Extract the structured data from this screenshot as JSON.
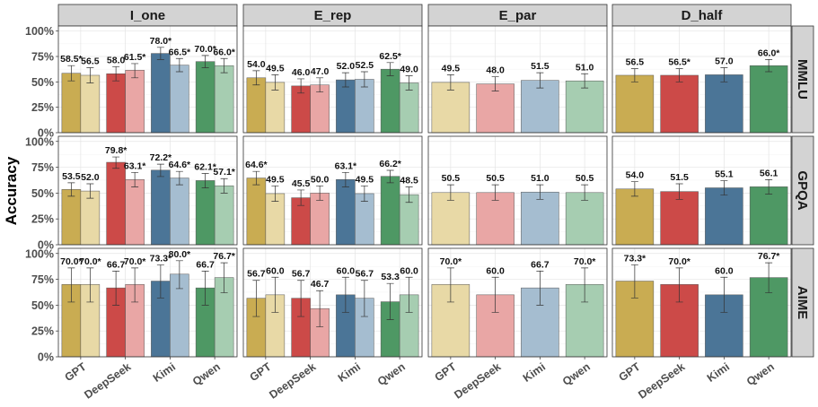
{
  "chart_data": {
    "type": "bar",
    "ylabel": "Accuracy",
    "ylim": [
      0,
      105
    ],
    "yticks": [
      0,
      25,
      50,
      75,
      100
    ],
    "yticklabels": [
      "0%",
      "25%",
      "50%",
      "75%",
      "100%"
    ],
    "columns": [
      "I_one",
      "E_rep",
      "E_par",
      "D_half"
    ],
    "rows": [
      "MMLU",
      "GPQA",
      "AIME"
    ],
    "categories": [
      "GPT",
      "DeepSeek",
      "Kimi",
      "Qwen"
    ],
    "colors": {
      "GPT": [
        "#c9ac52",
        "#e8d9a6"
      ],
      "DeepSeek": [
        "#cc4a48",
        "#e9a6a5"
      ],
      "Kimi": [
        "#4b7597",
        "#a5bdd0"
      ],
      "Qwen": [
        "#4e9864",
        "#a6cdb1"
      ]
    },
    "panels": [
      {
        "row": "MMLU",
        "col": "I_one",
        "bars": [
          {
            "model": "GPT",
            "shade": 0,
            "value": 58.5,
            "label": "58.5*",
            "err": [
              51,
              66
            ]
          },
          {
            "model": "GPT",
            "shade": 1,
            "value": 56.5,
            "label": "56.5",
            "err": [
              49,
              64
            ]
          },
          {
            "model": "DeepSeek",
            "shade": 0,
            "value": 58.0,
            "label": "58.0",
            "err": [
              51,
              65
            ]
          },
          {
            "model": "DeepSeek",
            "shade": 1,
            "value": 61.5,
            "label": "61.5*",
            "err": [
              54,
              68
            ]
          },
          {
            "model": "Kimi",
            "shade": 0,
            "value": 78.0,
            "label": "78.0*",
            "err": [
              72,
              84
            ]
          },
          {
            "model": "Kimi",
            "shade": 1,
            "value": 66.5,
            "label": "66.5*",
            "err": [
              60,
              73
            ]
          },
          {
            "model": "Qwen",
            "shade": 0,
            "value": 70.0,
            "label": "70.0*",
            "err": [
              64,
              76
            ]
          },
          {
            "model": "Qwen",
            "shade": 1,
            "value": 66.0,
            "label": "66.0*",
            "err": [
              59,
              73
            ]
          }
        ]
      },
      {
        "row": "MMLU",
        "col": "E_rep",
        "bars": [
          {
            "model": "GPT",
            "shade": 0,
            "value": 54.0,
            "label": "54.0",
            "err": [
              47,
              61
            ]
          },
          {
            "model": "GPT",
            "shade": 1,
            "value": 49.5,
            "label": "49.5",
            "err": [
              42,
              57
            ]
          },
          {
            "model": "DeepSeek",
            "shade": 0,
            "value": 46.0,
            "label": "46.0",
            "err": [
              39,
              53
            ]
          },
          {
            "model": "DeepSeek",
            "shade": 1,
            "value": 47.0,
            "label": "47.0",
            "err": [
              40,
              54
            ]
          },
          {
            "model": "Kimi",
            "shade": 0,
            "value": 52.0,
            "label": "52.0",
            "err": [
              45,
              59
            ]
          },
          {
            "model": "Kimi",
            "shade": 1,
            "value": 52.5,
            "label": "52.5",
            "err": [
              45,
              60
            ]
          },
          {
            "model": "Qwen",
            "shade": 0,
            "value": 62.5,
            "label": "62.5*",
            "err": [
              56,
              69
            ]
          },
          {
            "model": "Qwen",
            "shade": 1,
            "value": 49.0,
            "label": "49.0",
            "err": [
              42,
              56
            ]
          }
        ]
      },
      {
        "row": "MMLU",
        "col": "E_par",
        "bars": [
          {
            "model": "GPT",
            "shade": 1,
            "value": 49.5,
            "label": "49.5",
            "err": [
              42,
              57
            ]
          },
          {
            "model": "DeepSeek",
            "shade": 1,
            "value": 48.0,
            "label": "48.0",
            "err": [
              41,
              55
            ]
          },
          {
            "model": "Kimi",
            "shade": 1,
            "value": 51.5,
            "label": "51.5",
            "err": [
              44,
              59
            ]
          },
          {
            "model": "Qwen",
            "shade": 1,
            "value": 51.0,
            "label": "51.0",
            "err": [
              44,
              58
            ]
          }
        ]
      },
      {
        "row": "MMLU",
        "col": "D_half",
        "bars": [
          {
            "model": "GPT",
            "shade": 0,
            "value": 56.5,
            "label": "56.5",
            "err": [
              50,
              63
            ]
          },
          {
            "model": "DeepSeek",
            "shade": 0,
            "value": 56.5,
            "label": "56.5*",
            "err": [
              50,
              63
            ]
          },
          {
            "model": "Kimi",
            "shade": 0,
            "value": 57.0,
            "label": "57.0",
            "err": [
              50,
              64
            ]
          },
          {
            "model": "Qwen",
            "shade": 0,
            "value": 66.0,
            "label": "66.0*",
            "err": [
              60,
              72
            ]
          }
        ]
      },
      {
        "row": "GPQA",
        "col": "I_one",
        "bars": [
          {
            "model": "GPT",
            "shade": 0,
            "value": 53.5,
            "label": "53.5",
            "err": [
              47,
              60
            ]
          },
          {
            "model": "GPT",
            "shade": 1,
            "value": 52.0,
            "label": "52.0",
            "err": [
              45,
              59
            ]
          },
          {
            "model": "DeepSeek",
            "shade": 0,
            "value": 79.8,
            "label": "79.8*",
            "err": [
              74,
              85
            ]
          },
          {
            "model": "DeepSeek",
            "shade": 1,
            "value": 63.1,
            "label": "63.1*",
            "err": [
              56,
              70
            ]
          },
          {
            "model": "Kimi",
            "shade": 0,
            "value": 72.2,
            "label": "72.2*",
            "err": [
              66,
              78
            ]
          },
          {
            "model": "Kimi",
            "shade": 1,
            "value": 64.6,
            "label": "64.6*",
            "err": [
              58,
              71
            ]
          },
          {
            "model": "Qwen",
            "shade": 0,
            "value": 62.1,
            "label": "62.1*",
            "err": [
              55,
              69
            ]
          },
          {
            "model": "Qwen",
            "shade": 1,
            "value": 57.1,
            "label": "57.1*",
            "err": [
              50,
              64
            ]
          }
        ]
      },
      {
        "row": "GPQA",
        "col": "E_rep",
        "bars": [
          {
            "model": "GPT",
            "shade": 0,
            "value": 64.6,
            "label": "64.6*",
            "err": [
              58,
              71
            ]
          },
          {
            "model": "GPT",
            "shade": 1,
            "value": 49.5,
            "label": "49.5",
            "err": [
              42,
              57
            ]
          },
          {
            "model": "DeepSeek",
            "shade": 0,
            "value": 45.5,
            "label": "45.5",
            "err": [
              38,
              53
            ]
          },
          {
            "model": "DeepSeek",
            "shade": 1,
            "value": 50.0,
            "label": "50.0",
            "err": [
              43,
              57
            ]
          },
          {
            "model": "Kimi",
            "shade": 0,
            "value": 63.1,
            "label": "63.1*",
            "err": [
              56,
              70
            ]
          },
          {
            "model": "Kimi",
            "shade": 1,
            "value": 49.5,
            "label": "49.5",
            "err": [
              42,
              57
            ]
          },
          {
            "model": "Qwen",
            "shade": 0,
            "value": 66.2,
            "label": "66.2*",
            "err": [
              60,
              72
            ]
          },
          {
            "model": "Qwen",
            "shade": 1,
            "value": 48.5,
            "label": "48.5",
            "err": [
              41,
              56
            ]
          }
        ]
      },
      {
        "row": "GPQA",
        "col": "E_par",
        "bars": [
          {
            "model": "GPT",
            "shade": 1,
            "value": 50.5,
            "label": "50.5",
            "err": [
              43,
              58
            ]
          },
          {
            "model": "DeepSeek",
            "shade": 1,
            "value": 50.5,
            "label": "50.5",
            "err": [
              43,
              58
            ]
          },
          {
            "model": "Kimi",
            "shade": 1,
            "value": 51.0,
            "label": "51.0",
            "err": [
              44,
              58
            ]
          },
          {
            "model": "Qwen",
            "shade": 1,
            "value": 50.5,
            "label": "50.5",
            "err": [
              43,
              58
            ]
          }
        ]
      },
      {
        "row": "GPQA",
        "col": "D_half",
        "bars": [
          {
            "model": "GPT",
            "shade": 0,
            "value": 54.0,
            "label": "54.0",
            "err": [
              47,
              61
            ]
          },
          {
            "model": "DeepSeek",
            "shade": 0,
            "value": 51.5,
            "label": "51.5",
            "err": [
              44,
              59
            ]
          },
          {
            "model": "Kimi",
            "shade": 0,
            "value": 55.1,
            "label": "55.1",
            "err": [
              48,
              62
            ]
          },
          {
            "model": "Qwen",
            "shade": 0,
            "value": 56.1,
            "label": "56.1",
            "err": [
              49,
              63
            ]
          }
        ]
      },
      {
        "row": "AIME",
        "col": "I_one",
        "bars": [
          {
            "model": "GPT",
            "shade": 0,
            "value": 70.0,
            "label": "70.0*",
            "err": [
              53,
              86
            ]
          },
          {
            "model": "GPT",
            "shade": 1,
            "value": 70.0,
            "label": "70.0*",
            "err": [
              53,
              86
            ]
          },
          {
            "model": "DeepSeek",
            "shade": 0,
            "value": 66.7,
            "label": "66.7",
            "err": [
              50,
              83
            ]
          },
          {
            "model": "DeepSeek",
            "shade": 1,
            "value": 70.0,
            "label": "70.0*",
            "err": [
              53,
              86
            ]
          },
          {
            "model": "Kimi",
            "shade": 0,
            "value": 73.3,
            "label": "73.3*",
            "err": [
              57,
              89
            ]
          },
          {
            "model": "Kimi",
            "shade": 1,
            "value": 80.0,
            "label": "80.0*",
            "err": [
              66,
              93
            ]
          },
          {
            "model": "Qwen",
            "shade": 0,
            "value": 66.7,
            "label": "66.7",
            "err": [
              50,
              83
            ]
          },
          {
            "model": "Qwen",
            "shade": 1,
            "value": 76.7,
            "label": "76.7*",
            "err": [
              62,
              91
            ]
          }
        ]
      },
      {
        "row": "AIME",
        "col": "E_rep",
        "bars": [
          {
            "model": "GPT",
            "shade": 0,
            "value": 56.7,
            "label": "56.7",
            "err": [
              39,
              74
            ]
          },
          {
            "model": "GPT",
            "shade": 1,
            "value": 60.0,
            "label": "60.0",
            "err": [
              43,
              77
            ]
          },
          {
            "model": "DeepSeek",
            "shade": 0,
            "value": 56.7,
            "label": "56.7",
            "err": [
              39,
              74
            ]
          },
          {
            "model": "DeepSeek",
            "shade": 1,
            "value": 46.7,
            "label": "46.7",
            "err": [
              29,
              64
            ]
          },
          {
            "model": "Kimi",
            "shade": 0,
            "value": 60.0,
            "label": "60.0",
            "err": [
              43,
              77
            ]
          },
          {
            "model": "Kimi",
            "shade": 1,
            "value": 56.7,
            "label": "56.7",
            "err": [
              39,
              74
            ]
          },
          {
            "model": "Qwen",
            "shade": 0,
            "value": 53.3,
            "label": "53.3",
            "err": [
              36,
              71
            ]
          },
          {
            "model": "Qwen",
            "shade": 1,
            "value": 60.0,
            "label": "60.0",
            "err": [
              43,
              77
            ]
          }
        ]
      },
      {
        "row": "AIME",
        "col": "E_par",
        "bars": [
          {
            "model": "GPT",
            "shade": 1,
            "value": 70.0,
            "label": "70.0*",
            "err": [
              53,
              86
            ]
          },
          {
            "model": "DeepSeek",
            "shade": 1,
            "value": 60.0,
            "label": "60.0",
            "err": [
              43,
              77
            ]
          },
          {
            "model": "Kimi",
            "shade": 1,
            "value": 66.7,
            "label": "66.7",
            "err": [
              50,
              83
            ]
          },
          {
            "model": "Qwen",
            "shade": 1,
            "value": 70.0,
            "label": "70.0*",
            "err": [
              53,
              86
            ]
          }
        ]
      },
      {
        "row": "AIME",
        "col": "D_half",
        "bars": [
          {
            "model": "GPT",
            "shade": 0,
            "value": 73.3,
            "label": "73.3*",
            "err": [
              57,
              89
            ]
          },
          {
            "model": "DeepSeek",
            "shade": 0,
            "value": 70.0,
            "label": "70.0*",
            "err": [
              53,
              86
            ]
          },
          {
            "model": "Kimi",
            "shade": 0,
            "value": 60.0,
            "label": "60.0",
            "err": [
              43,
              77
            ]
          },
          {
            "model": "Qwen",
            "shade": 0,
            "value": 76.7,
            "label": "76.7*",
            "err": [
              62,
              91
            ]
          }
        ]
      }
    ]
  }
}
